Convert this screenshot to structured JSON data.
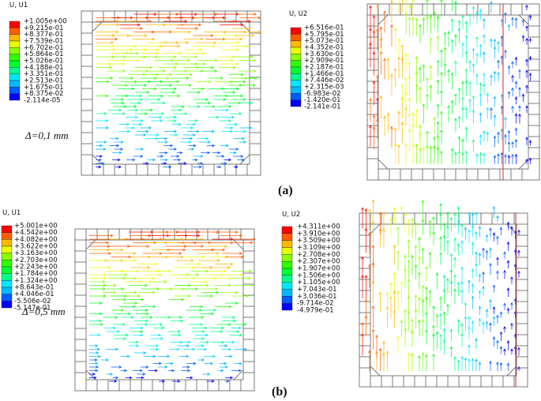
{
  "panels": [
    {
      "legend": {
        "title": "U, U1",
        "labels": [
          "+1.005e+00",
          "+9.215e-01",
          "+8.377e-01",
          "+7.539e-01",
          "+6.702e-01",
          "+5.864e-01",
          "+5.026e-01",
          "+4.188e-01",
          "+3.351e-01",
          "+2.513e-01",
          "+1.675e-01",
          "+8.375e-02",
          "-2.114e-05"
        ]
      },
      "note": "Δ=0,1 mm"
    },
    {
      "legend": {
        "title": "U, U2",
        "labels": [
          "+6.516e-01",
          "+5.795e-01",
          "+5.073e-01",
          "+4.352e-01",
          "+3.630e-01",
          "+2.909e-01",
          "+2.187e-01",
          "+1.466e-01",
          "+7.446e-02",
          "+2.315e-03",
          "-6.983e-02",
          "-1.420e-01",
          "-2.141e-01"
        ]
      }
    },
    {
      "legend": {
        "title": "U, U1",
        "labels": [
          "+5.001e+00",
          "+4.542e+00",
          "+4.082e+00",
          "+3.622e+00",
          "+3.163e+00",
          "+2.703e+00",
          "+2.243e+00",
          "+1.784e+00",
          "+1.324e+00",
          "+8.643e-01",
          "+4.046e-01",
          "-5.506e-02",
          "-5.147e-01"
        ]
      },
      "note": "Δ=0,5 mm"
    },
    {
      "legend": {
        "title": "U, U2",
        "labels": [
          "+4.311e+00",
          "+3.910e+00",
          "+3.509e+00",
          "+3.109e+00",
          "+2.708e+00",
          "+2.307e+00",
          "+1.907e+00",
          "+1.506e+00",
          "+1.105e+00",
          "+7.043e-01",
          "+3.036e-01",
          "-9.714e-02",
          "-4.979e-01"
        ]
      }
    }
  ],
  "captions": [
    "(a)",
    "(b)"
  ]
}
